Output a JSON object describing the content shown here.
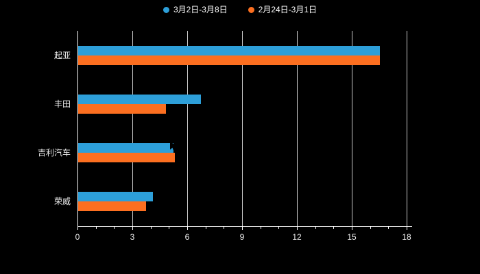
{
  "chart_data": {
    "type": "bar",
    "orientation": "horizontal",
    "title": "",
    "xlabel": "",
    "ylabel": "",
    "categories": [
      "起亚",
      "丰田",
      "吉利汽车",
      "荣威"
    ],
    "series": [
      {
        "name": "3月2日-3月8日",
        "color": "#2d9fd9",
        "values": [
          16.5,
          6.7,
          5.2,
          4.1
        ]
      },
      {
        "name": "2月24日-3月1日",
        "color": "#fc6f20",
        "values": [
          16.5,
          4.8,
          5.3,
          3.7
        ]
      }
    ],
    "xlim": [
      0,
      18
    ],
    "xticks": [
      0,
      3,
      6,
      9,
      12,
      15,
      18
    ],
    "grid": true,
    "legend_position": "top"
  },
  "style": {
    "background": "#000000",
    "axis_color": "#ffffff",
    "grid_color": "#cccccc",
    "text_color": "#f0f0f0"
  }
}
